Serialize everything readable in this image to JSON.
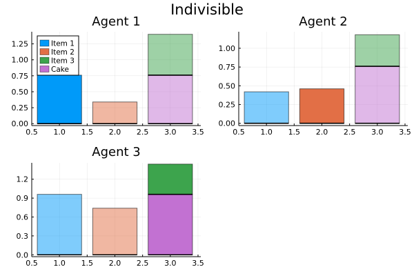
{
  "figure": {
    "suptitle": "Indivisible"
  },
  "chart_data": [
    {
      "type": "bar",
      "title": "Agent 1",
      "xlabel": "",
      "ylabel": "",
      "xlim": [
        0.5,
        3.55
      ],
      "ylim": [
        -0.03,
        1.44
      ],
      "xticks": [
        0.5,
        1.0,
        1.5,
        2.0,
        2.5,
        3.0,
        3.5
      ],
      "xtick_labels": [
        "0.5",
        "1.0",
        "1.5",
        "2.0",
        "2.5",
        "3.0",
        "3.5"
      ],
      "yticks": [
        0,
        0.25,
        0.5,
        0.75,
        1.0,
        1.25
      ],
      "ytick_labels": [
        "0.00",
        "0.25",
        "0.50",
        "0.75",
        "1.00",
        "1.25"
      ],
      "grid": true,
      "legend": "top-left",
      "bar_width": 0.8,
      "series": [
        {
          "name": "Item 1",
          "color": "#009af9",
          "alpha": 1.0,
          "stack_order": [
            1
          ],
          "bars": [
            {
              "x": 1,
              "bottom": 0,
              "top": 0.76
            }
          ]
        },
        {
          "name": "Item 2",
          "color": "#e26f46",
          "alpha": 0.5,
          "stack_order": [
            2
          ],
          "bars": [
            {
              "x": 2,
              "bottom": 0,
              "top": 0.34
            }
          ]
        },
        {
          "name": "Item 3",
          "color": "#3da44d",
          "alpha": 0.5,
          "stack_order": [
            4
          ],
          "bars": [
            {
              "x": 3,
              "bottom": 0.76,
              "top": 1.4
            }
          ]
        },
        {
          "name": "Cake",
          "color": "#c271d2",
          "alpha": 0.5,
          "stack_order": [
            3
          ],
          "bars": [
            {
              "x": 3,
              "bottom": 0,
              "top": 0.76
            }
          ]
        }
      ]
    },
    {
      "type": "bar",
      "title": "Agent 2",
      "xlabel": "",
      "ylabel": "",
      "xlim": [
        0.5,
        3.55
      ],
      "ylim": [
        -0.03,
        1.22
      ],
      "xticks": [
        0.5,
        1.0,
        1.5,
        2.0,
        2.5,
        3.0,
        3.5
      ],
      "xtick_labels": [
        "0.5",
        "1.0",
        "1.5",
        "2.0",
        "2.5",
        "3.0",
        "3.5"
      ],
      "yticks": [
        0,
        0.25,
        0.5,
        0.75,
        1.0
      ],
      "ytick_labels": [
        "0.00",
        "0.25",
        "0.50",
        "0.75",
        "1.00"
      ],
      "grid": true,
      "legend": "none",
      "bar_width": 0.8,
      "series": [
        {
          "name": "Item 1",
          "color": "#009af9",
          "alpha": 0.5,
          "stack_order": [
            1
          ],
          "bars": [
            {
              "x": 1,
              "bottom": 0,
              "top": 0.42
            }
          ]
        },
        {
          "name": "Item 2",
          "color": "#e26f46",
          "alpha": 1.0,
          "stack_order": [
            2
          ],
          "bars": [
            {
              "x": 2,
              "bottom": 0,
              "top": 0.46
            }
          ]
        },
        {
          "name": "Item 3",
          "color": "#3da44d",
          "alpha": 0.5,
          "stack_order": [
            4
          ],
          "bars": [
            {
              "x": 3,
              "bottom": 0.76,
              "top": 1.18
            }
          ]
        },
        {
          "name": "Cake",
          "color": "#c271d2",
          "alpha": 0.5,
          "stack_order": [
            3
          ],
          "bars": [
            {
              "x": 3,
              "bottom": 0,
              "top": 0.76
            }
          ]
        }
      ]
    },
    {
      "type": "bar",
      "title": "Agent 3",
      "xlabel": "",
      "ylabel": "",
      "xlim": [
        0.5,
        3.55
      ],
      "ylim": [
        -0.03,
        1.46
      ],
      "xticks": [
        0.5,
        1.0,
        1.5,
        2.0,
        2.5,
        3.0,
        3.5
      ],
      "xtick_labels": [
        "0.5",
        "1.0",
        "1.5",
        "2.0",
        "2.5",
        "3.0",
        "3.5"
      ],
      "yticks": [
        0,
        0.3,
        0.6,
        0.9,
        1.2
      ],
      "ytick_labels": [
        "0.0",
        "0.3",
        "0.6",
        "0.9",
        "1.2"
      ],
      "grid": true,
      "legend": "none",
      "bar_width": 0.8,
      "series": [
        {
          "name": "Item 1",
          "color": "#009af9",
          "alpha": 0.5,
          "stack_order": [
            1
          ],
          "bars": [
            {
              "x": 1,
              "bottom": 0,
              "top": 0.96
            }
          ]
        },
        {
          "name": "Item 2",
          "color": "#e26f46",
          "alpha": 0.5,
          "stack_order": [
            2
          ],
          "bars": [
            {
              "x": 2,
              "bottom": 0,
              "top": 0.74
            }
          ]
        },
        {
          "name": "Item 3",
          "color": "#3da44d",
          "alpha": 1.0,
          "stack_order": [
            4
          ],
          "bars": [
            {
              "x": 3,
              "bottom": 0.96,
              "top": 1.44
            }
          ]
        },
        {
          "name": "Cake",
          "color": "#c271d2",
          "alpha": 1.0,
          "stack_order": [
            3
          ],
          "bars": [
            {
              "x": 3,
              "bottom": 0,
              "top": 0.96
            }
          ]
        }
      ]
    }
  ]
}
